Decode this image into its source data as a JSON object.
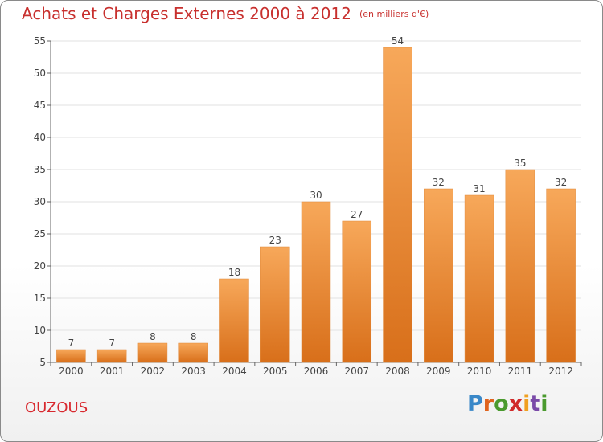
{
  "title": "Achats et Charges Externes 2000 à 2012",
  "subtitle": "(en milliers d'€)",
  "location": "OUZOUS",
  "logo_text": "Proxiti",
  "colors": {
    "title": "#c8302e",
    "bar_light": "#f7a85a",
    "bar_dark": "#d86f1a",
    "grid": "#e2e2e2"
  },
  "chart_data": {
    "type": "bar",
    "title": "Achats et Charges Externes 2000 à 2012",
    "subtitle": "(en milliers d'€)",
    "xlabel": "",
    "ylabel": "",
    "categories": [
      "2000",
      "2001",
      "2002",
      "2003",
      "2004",
      "2005",
      "2006",
      "2007",
      "2008",
      "2009",
      "2010",
      "2011",
      "2012"
    ],
    "values": [
      7,
      7,
      8,
      8,
      18,
      23,
      30,
      27,
      54,
      32,
      31,
      35,
      32
    ],
    "ylim": [
      5,
      55
    ],
    "yticks": [
      5,
      10,
      15,
      20,
      25,
      30,
      35,
      40,
      45,
      50,
      55
    ],
    "grid": true,
    "legend": "none"
  }
}
